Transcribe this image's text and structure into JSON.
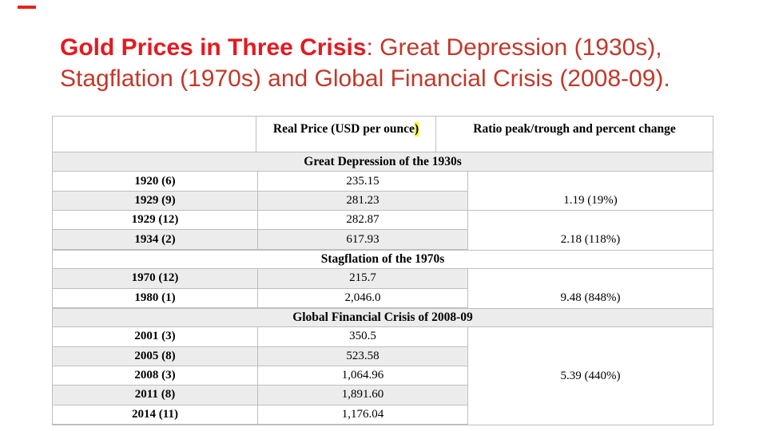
{
  "title": {
    "bold": "Gold Prices in Three Crisis",
    "rest_line1": ": Great Depression (1930s),",
    "line2": "Stagflation (1970s) and Global Financial Crisis (2008-09)."
  },
  "table": {
    "headers": {
      "year": "",
      "price_prefix": "Real Price (USD per ounce",
      "price_highlighted_char": ")",
      "ratio": "Ratio peak/trough and percent change"
    },
    "rows": [
      {
        "type": "section",
        "label": "Great Depression of the 1930s",
        "shade": true
      },
      {
        "type": "data",
        "year": "1920 (6)",
        "price": "235.15",
        "shade": false
      },
      {
        "type": "data",
        "year": "1929 (9)",
        "price": "281.23",
        "shade": true,
        "ratio": "1.19 (19%)",
        "ratio_border_bottom": true
      },
      {
        "type": "data",
        "year": "1929 (12)",
        "price": "282.87",
        "shade": false
      },
      {
        "type": "data",
        "year": "1934 (2)",
        "price": "617.93",
        "shade": true,
        "ratio": "2.18 (118%)"
      },
      {
        "type": "section",
        "label": "Stagflation of the 1970s",
        "shade": false
      },
      {
        "type": "data",
        "year": "1970 (12)",
        "price": "215.7",
        "shade": true
      },
      {
        "type": "data",
        "year": "1980 (1)",
        "price": "2,046.0",
        "shade": false,
        "ratio": "9.48 (848%)"
      },
      {
        "type": "section",
        "label": "Global Financial Crisis of 2008-09",
        "shade": true
      },
      {
        "type": "data",
        "year": "2001 (3)",
        "price": "350.5",
        "shade": false
      },
      {
        "type": "data",
        "year": "2005 (8)",
        "price": "523.58",
        "shade": true
      },
      {
        "type": "data",
        "year": "2008 (3)",
        "price": "1,064.96",
        "shade": false,
        "ratio": "5.39 (440%)"
      },
      {
        "type": "data",
        "year": "2011 (8)",
        "price": "1,891.60",
        "shade": true
      },
      {
        "type": "data",
        "year": "2014 (11)",
        "price": "1,176.04",
        "shade": false
      }
    ]
  },
  "colors": {
    "title_bold_red": "#e21b22",
    "title_red": "#c0392b",
    "corner_accent_red": "#e2231a",
    "highlight_yellow": "#ffff00",
    "table_border_gray": "#bfbfbf",
    "row_stripe_gray": "#ececec"
  }
}
